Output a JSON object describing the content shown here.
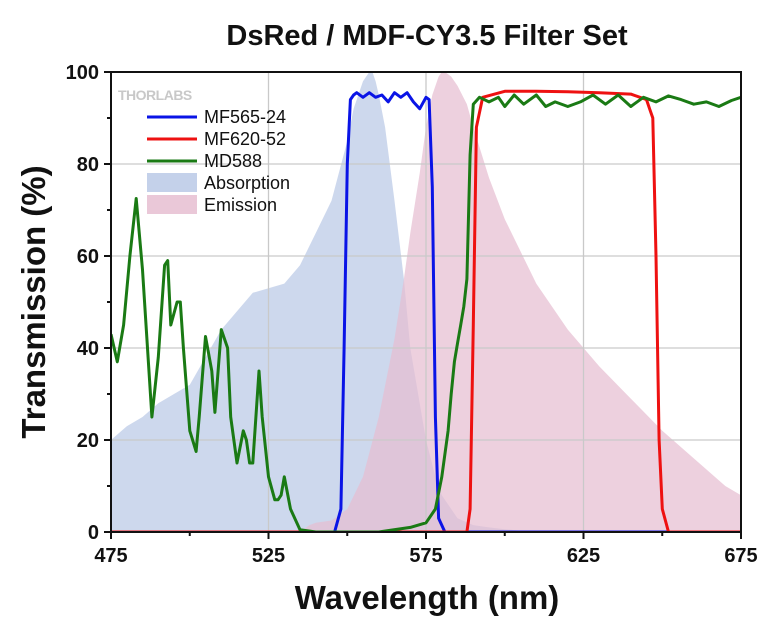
{
  "chart_data": {
    "type": "line",
    "title": "DsRed / MDF-CY3.5 Filter Set",
    "xlabel": "Wavelength (nm)",
    "ylabel": "Transmission (%)",
    "xlim": [
      475,
      675
    ],
    "ylim": [
      0,
      100
    ],
    "x_ticks": [
      475,
      525,
      575,
      625,
      675
    ],
    "y_ticks": [
      0,
      20,
      40,
      60,
      80,
      100
    ],
    "grid": true,
    "legend_placement": "upper-left",
    "watermark": "THORLABS",
    "series": [
      {
        "name": "MF565-24",
        "kind": "line",
        "color": "#0a14e6",
        "x": [
          475,
          546,
          548,
          549,
          550,
          551,
          552,
          553,
          555,
          557,
          559,
          561,
          563,
          565,
          567,
          569,
          571,
          573,
          575,
          576,
          577,
          578,
          579,
          581,
          675
        ],
        "y": [
          0,
          0,
          5,
          40,
          80,
          94,
          95,
          95.5,
          94.5,
          95.5,
          94.5,
          95,
          93.5,
          95.5,
          94.5,
          95.5,
          93.5,
          92,
          94.5,
          94,
          75,
          25,
          3,
          0,
          0
        ]
      },
      {
        "name": "MF620-52",
        "kind": "line",
        "color": "#ee1111",
        "x": [
          475,
          588,
          589,
          590,
          591,
          593,
          600,
          610,
          620,
          630,
          640,
          645,
          646,
          647,
          648,
          649,
          650,
          652,
          675
        ],
        "y": [
          0,
          0,
          5,
          45,
          88,
          94.5,
          95.8,
          95.8,
          95.7,
          95.5,
          95.2,
          94,
          92,
          90,
          60,
          20,
          5,
          0,
          0
        ]
      },
      {
        "name": "MD588",
        "kind": "line",
        "color": "#1a7a14",
        "x": [
          475,
          477,
          479,
          481,
          483,
          485,
          488,
          490,
          492,
          493,
          494,
          496,
          497,
          498,
          500,
          502,
          503,
          505,
          507,
          508,
          510,
          512,
          513,
          515,
          517,
          518,
          519,
          520,
          522,
          523,
          525,
          527,
          528,
          529,
          530,
          532,
          535,
          540,
          560,
          570,
          575,
          578,
          580,
          582,
          583,
          584,
          585,
          586,
          587,
          588,
          589,
          590,
          592,
          595,
          598,
          600,
          603,
          606,
          610,
          613,
          616,
          620,
          624,
          628,
          632,
          636,
          640,
          644,
          648,
          652,
          656,
          660,
          664,
          668,
          672,
          675
        ],
        "y": [
          43,
          37,
          45,
          60,
          72.5,
          57,
          25,
          38,
          58,
          59,
          45,
          50,
          50,
          40,
          22,
          17.5,
          25,
          42.5,
          35,
          26,
          44,
          40,
          25,
          15,
          22,
          20,
          15,
          15,
          35,
          25,
          12,
          7,
          7,
          8,
          12,
          5,
          0.5,
          0,
          0,
          1,
          2,
          5,
          12,
          22,
          30,
          37,
          41,
          45,
          49,
          55,
          82,
          93,
          94.5,
          93.5,
          94.5,
          92.5,
          95,
          93,
          95,
          92.5,
          93.5,
          92.5,
          93.5,
          95,
          93,
          95,
          92.5,
          94.5,
          93.5,
          94.8,
          94,
          93,
          93.5,
          92.5,
          93.8,
          94.5
        ]
      },
      {
        "name": "Absorption",
        "kind": "area",
        "color": "#bac9e6",
        "x": [
          475,
          480,
          485,
          490,
          495,
          500,
          505,
          510,
          515,
          520,
          525,
          530,
          535,
          540,
          545,
          550,
          552,
          555,
          557,
          558,
          559,
          560,
          562,
          565,
          568,
          570,
          573,
          575,
          578,
          580,
          585,
          590,
          595,
          600,
          605,
          610,
          620
        ],
        "y": [
          20,
          23,
          25,
          28,
          30,
          32,
          38,
          44,
          48,
          52,
          53,
          54,
          58,
          65,
          72,
          85,
          92,
          98,
          100,
          100,
          98,
          95,
          88,
          72,
          55,
          40,
          28,
          20,
          12,
          8,
          3,
          1.5,
          1,
          0.6,
          0.3,
          0.1,
          0
        ]
      },
      {
        "name": "Emission",
        "kind": "area",
        "color": "#e6bed1",
        "x": [
          535,
          538,
          540,
          545,
          550,
          555,
          560,
          565,
          568,
          570,
          573,
          575,
          577,
          579,
          580,
          581,
          582,
          583,
          585,
          588,
          590,
          595,
          600,
          610,
          620,
          630,
          640,
          650,
          660,
          670,
          675
        ],
        "y": [
          0,
          1.5,
          2,
          2.5,
          5,
          12,
          25,
          42,
          55,
          65,
          78,
          88,
          95,
          99,
          100,
          100,
          99.5,
          99,
          97,
          93,
          88,
          77,
          68,
          54,
          44,
          36,
          29,
          22,
          16,
          10,
          8
        ]
      }
    ]
  }
}
